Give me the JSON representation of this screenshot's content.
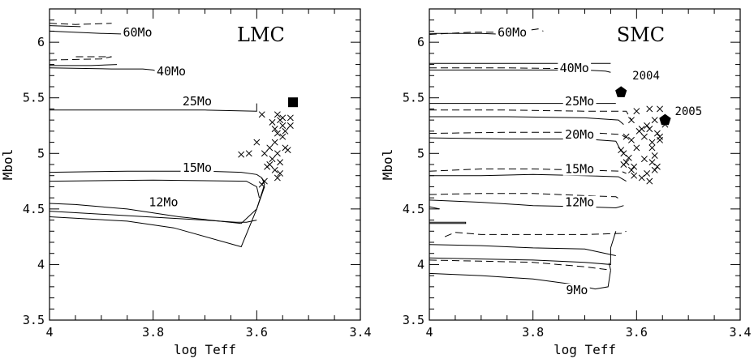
{
  "chart_data": [
    {
      "type": "scatter",
      "title": "LMC",
      "xlabel": "log Teff",
      "ylabel": "Mbol",
      "xlim": [
        4.0,
        3.4
      ],
      "ylim": [
        3.5,
        6.3
      ],
      "x_ticks": [
        "4",
        "3.8",
        "3.6",
        "3.4"
      ],
      "y_ticks": [
        "3.5",
        "4",
        "4.5",
        "5",
        "5.5",
        "6"
      ],
      "track_labels": [
        {
          "text": "60Mo",
          "x": 3.83,
          "y": 6.06
        },
        {
          "text": "40Mo",
          "x": 3.765,
          "y": 5.71
        },
        {
          "text": "25Mo",
          "x": 3.715,
          "y": 5.44
        },
        {
          "text": "15Mo",
          "x": 3.715,
          "y": 4.84
        },
        {
          "text": "12Mo",
          "x": 3.78,
          "y": 4.53
        }
      ],
      "tracks": [
        {
          "style": "solid",
          "points": [
            [
              4.0,
              6.1
            ],
            [
              3.9,
              6.08
            ],
            [
              3.83,
              6.07
            ],
            [
              3.8,
              6.06
            ]
          ]
        },
        {
          "style": "dashed",
          "points": [
            [
              4.0,
              6.17
            ],
            [
              3.95,
              6.16
            ],
            [
              3.88,
              6.17
            ]
          ]
        },
        {
          "style": "solid",
          "points": [
            [
              4.0,
              6.15
            ],
            [
              3.94,
              6.14
            ]
          ]
        },
        {
          "style": "solid",
          "points": [
            [
              4.0,
              5.77
            ],
            [
              3.88,
              5.76
            ],
            [
              3.82,
              5.76
            ],
            [
              3.8,
              5.75
            ],
            [
              3.785,
              5.73
            ],
            [
              3.78,
              5.7
            ],
            [
              3.785,
              5.78
            ]
          ]
        },
        {
          "style": "dashed",
          "points": [
            [
              4.0,
              5.84
            ],
            [
              3.9,
              5.85
            ],
            [
              3.88,
              5.87
            ],
            [
              3.95,
              5.87
            ]
          ]
        },
        {
          "style": "solid",
          "points": [
            [
              4.0,
              5.79
            ],
            [
              3.92,
              5.79
            ],
            [
              3.87,
              5.8
            ]
          ]
        },
        {
          "style": "solid",
          "points": [
            [
              4.0,
              5.39
            ],
            [
              3.8,
              5.39
            ],
            [
              3.7,
              5.39
            ],
            [
              3.6,
              5.38
            ],
            [
              3.6,
              5.45
            ]
          ]
        },
        {
          "style": "solid",
          "points": [
            [
              4.0,
              4.83
            ],
            [
              3.85,
              4.84
            ],
            [
              3.7,
              4.84
            ],
            [
              3.63,
              4.83
            ],
            [
              3.6,
              4.81
            ],
            [
              3.59,
              4.78
            ],
            [
              3.585,
              4.72
            ],
            [
              3.6,
              4.5
            ],
            [
              3.63,
              4.37
            ],
            [
              3.75,
              4.43
            ],
            [
              3.85,
              4.5
            ],
            [
              3.95,
              4.54
            ],
            [
              4.0,
              4.55
            ]
          ]
        },
        {
          "style": "solid",
          "points": [
            [
              4.0,
              4.75
            ],
            [
              3.8,
              4.76
            ],
            [
              3.62,
              4.75
            ],
            [
              3.6,
              4.7
            ],
            [
              3.595,
              4.6
            ]
          ]
        },
        {
          "style": "solid",
          "points": [
            [
              4.0,
              4.48
            ],
            [
              3.85,
              4.44
            ],
            [
              3.7,
              4.4
            ],
            [
              3.64,
              4.38
            ],
            [
              3.62,
              4.38
            ],
            [
              3.6,
              4.4
            ]
          ]
        },
        {
          "style": "solid",
          "points": [
            [
              4.0,
              4.43
            ],
            [
              3.85,
              4.39
            ],
            [
              3.76,
              4.33
            ],
            [
              3.63,
              4.16
            ],
            [
              3.6,
              4.5
            ],
            [
              3.585,
              4.7
            ]
          ]
        }
      ],
      "stars": [
        [
          3.56,
          5.35
        ],
        [
          3.555,
          5.3
        ],
        [
          3.55,
          5.25
        ],
        [
          3.565,
          5.22
        ],
        [
          3.545,
          5.2
        ],
        [
          3.535,
          5.25
        ],
        [
          3.57,
          5.28
        ],
        [
          3.56,
          5.18
        ],
        [
          3.55,
          5.15
        ],
        [
          3.565,
          5.1
        ],
        [
          3.545,
          5.05
        ],
        [
          3.56,
          5.0
        ],
        [
          3.54,
          5.03
        ],
        [
          3.57,
          4.95
        ],
        [
          3.555,
          4.92
        ],
        [
          3.575,
          4.9
        ],
        [
          3.565,
          4.85
        ],
        [
          3.555,
          4.82
        ],
        [
          3.58,
          4.88
        ],
        [
          3.585,
          5.0
        ],
        [
          3.6,
          5.1
        ],
        [
          3.615,
          5.0
        ],
        [
          3.63,
          4.99
        ],
        [
          3.59,
          5.35
        ],
        [
          3.585,
          4.75
        ],
        [
          3.59,
          4.72
        ],
        [
          3.55,
          5.32
        ],
        [
          3.535,
          5.32
        ],
        [
          3.56,
          4.78
        ],
        [
          3.575,
          5.05
        ]
      ],
      "highlight": [
        {
          "marker": "square",
          "x": 3.53,
          "y": 5.46,
          "label": ""
        }
      ]
    },
    {
      "type": "scatter",
      "title": "SMC",
      "xlabel": "log Teff",
      "ylabel": "Mbol",
      "xlim": [
        4.0,
        3.4
      ],
      "ylim": [
        3.5,
        6.3
      ],
      "x_ticks": [
        "4",
        "3.8",
        "3.6",
        "3.4"
      ],
      "y_ticks": [
        "3.5",
        "4",
        "4.5",
        "5",
        "5.5",
        "6"
      ],
      "track_labels": [
        {
          "text": "60Mo",
          "x": 3.84,
          "y": 6.06
        },
        {
          "text": "40Mo",
          "x": 3.72,
          "y": 5.74
        },
        {
          "text": "25Mo",
          "x": 3.71,
          "y": 5.44
        },
        {
          "text": "20Mo",
          "x": 3.71,
          "y": 5.14
        },
        {
          "text": "15Mo",
          "x": 3.71,
          "y": 4.83
        },
        {
          "text": "12Mo",
          "x": 3.71,
          "y": 4.53
        },
        {
          "text": "9Mo",
          "x": 3.715,
          "y": 3.74
        }
      ],
      "tracks": [
        {
          "style": "solid",
          "points": [
            [
              4.0,
              6.08
            ],
            [
              3.9,
              6.08
            ],
            [
              3.85,
              6.07
            ]
          ]
        },
        {
          "style": "dashed",
          "points": [
            [
              4.0,
              6.07
            ],
            [
              3.92,
              6.09
            ],
            [
              3.85,
              6.09
            ],
            [
              3.82,
              6.1
            ],
            [
              3.79,
              6.12
            ],
            [
              3.78,
              6.1
            ]
          ]
        },
        {
          "style": "solid",
          "points": [
            [
              4.0,
              5.81
            ],
            [
              3.85,
              5.81
            ],
            [
              3.7,
              5.81
            ],
            [
              3.65,
              5.81
            ]
          ]
        },
        {
          "style": "dashed",
          "points": [
            [
              4.0,
              5.77
            ],
            [
              3.85,
              5.77
            ],
            [
              3.7,
              5.76
            ]
          ]
        },
        {
          "style": "solid",
          "points": [
            [
              4.0,
              5.75
            ],
            [
              3.85,
              5.75
            ],
            [
              3.7,
              5.75
            ],
            [
              3.66,
              5.74
            ],
            [
              3.65,
              5.73
            ]
          ]
        },
        {
          "style": "solid",
          "points": [
            [
              4.0,
              5.45
            ],
            [
              3.85,
              5.45
            ],
            [
              3.7,
              5.45
            ],
            [
              3.64,
              5.45
            ]
          ]
        },
        {
          "style": "dashed",
          "points": [
            [
              4.0,
              5.39
            ],
            [
              3.85,
              5.39
            ],
            [
              3.7,
              5.38
            ],
            [
              3.62,
              5.38
            ],
            [
              3.61,
              5.3
            ]
          ]
        },
        {
          "style": "solid",
          "points": [
            [
              4.0,
              5.33
            ],
            [
              3.85,
              5.33
            ],
            [
              3.7,
              5.32
            ],
            [
              3.635,
              5.3
            ],
            [
              3.625,
              5.26
            ]
          ]
        },
        {
          "style": "dashed",
          "points": [
            [
              4.0,
              5.18
            ],
            [
              3.85,
              5.19
            ],
            [
              3.7,
              5.19
            ],
            [
              3.63,
              5.17
            ],
            [
              3.62,
              5.14
            ]
          ]
        },
        {
          "style": "solid",
          "points": [
            [
              4.0,
              5.14
            ],
            [
              3.85,
              5.13
            ],
            [
              3.7,
              5.13
            ],
            [
              3.64,
              5.11
            ],
            [
              3.63,
              5.02
            ]
          ]
        },
        {
          "style": "dashed",
          "points": [
            [
              4.0,
              4.84
            ],
            [
              3.9,
              4.86
            ],
            [
              3.8,
              4.86
            ],
            [
              3.7,
              4.85
            ],
            [
              3.63,
              4.84
            ],
            [
              3.62,
              4.82
            ]
          ]
        },
        {
          "style": "solid",
          "points": [
            [
              4.0,
              4.8
            ],
            [
              3.9,
              4.8
            ],
            [
              3.8,
              4.81
            ],
            [
              3.7,
              4.8
            ],
            [
              3.635,
              4.79
            ],
            [
              3.62,
              4.75
            ]
          ]
        },
        {
          "style": "dashed",
          "points": [
            [
              4.0,
              4.63
            ],
            [
              3.9,
              4.64
            ],
            [
              3.8,
              4.64
            ],
            [
              3.7,
              4.62
            ],
            [
              3.64,
              4.61
            ],
            [
              3.63,
              4.58
            ]
          ]
        },
        {
          "style": "solid",
          "points": [
            [
              4.0,
              4.58
            ],
            [
              3.9,
              4.56
            ],
            [
              3.8,
              4.53
            ],
            [
              3.7,
              4.52
            ],
            [
              3.64,
              4.51
            ],
            [
              3.625,
              4.53
            ]
          ]
        },
        {
          "style": "solid",
          "points": [
            [
              4.0,
              4.52
            ],
            [
              3.98,
              4.5
            ]
          ]
        },
        {
          "style": "solid",
          "points": [
            [
              4.0,
              4.38
            ],
            [
              3.93,
              4.38
            ],
            [
              3.93,
              4.37
            ],
            [
              4.0,
              4.37
            ]
          ]
        },
        {
          "style": "dashed",
          "points": [
            [
              3.97,
              4.25
            ],
            [
              3.95,
              4.29
            ],
            [
              3.9,
              4.27
            ],
            [
              3.8,
              4.27
            ],
            [
              3.7,
              4.27
            ],
            [
              3.63,
              4.28
            ],
            [
              3.62,
              4.3
            ]
          ]
        },
        {
          "style": "solid",
          "points": [
            [
              4.0,
              4.18
            ],
            [
              3.9,
              4.17
            ],
            [
              3.8,
              4.15
            ],
            [
              3.7,
              4.14
            ],
            [
              3.66,
              4.1
            ],
            [
              3.64,
              4.08
            ]
          ]
        },
        {
          "style": "solid",
          "points": [
            [
              4.0,
              4.06
            ],
            [
              3.9,
              4.05
            ],
            [
              3.8,
              4.04
            ],
            [
              3.7,
              4.02
            ],
            [
              3.65,
              4.0
            ],
            [
              3.65,
              4.15
            ],
            [
              3.64,
              4.3
            ]
          ]
        },
        {
          "style": "dashed",
          "points": [
            [
              4.0,
              4.04
            ],
            [
              3.9,
              4.03
            ],
            [
              3.8,
              4.02
            ],
            [
              3.7,
              3.98
            ],
            [
              3.65,
              3.95
            ],
            [
              3.655,
              4.05
            ]
          ]
        },
        {
          "style": "solid",
          "points": [
            [
              4.0,
              3.92
            ],
            [
              3.9,
              3.9
            ],
            [
              3.8,
              3.87
            ],
            [
              3.72,
              3.82
            ],
            [
              3.68,
              3.78
            ],
            [
              3.655,
              3.8
            ],
            [
              3.65,
              3.95
            ]
          ]
        }
      ],
      "stars": [
        [
          3.6,
          5.38
        ],
        [
          3.575,
          5.4
        ],
        [
          3.555,
          5.4
        ],
        [
          3.565,
          5.3
        ],
        [
          3.58,
          5.25
        ],
        [
          3.575,
          5.22
        ],
        [
          3.59,
          5.22
        ],
        [
          3.56,
          5.18
        ],
        [
          3.585,
          5.15
        ],
        [
          3.555,
          5.12
        ],
        [
          3.57,
          5.1
        ],
        [
          3.6,
          5.05
        ],
        [
          3.61,
          5.12
        ],
        [
          3.62,
          5.15
        ],
        [
          3.625,
          5.0
        ],
        [
          3.63,
          5.03
        ],
        [
          3.615,
          4.96
        ],
        [
          3.62,
          4.92
        ],
        [
          3.605,
          4.88
        ],
        [
          3.61,
          4.85
        ],
        [
          3.605,
          4.8
        ],
        [
          3.59,
          4.78
        ],
        [
          3.585,
          4.95
        ],
        [
          3.57,
          4.92
        ],
        [
          3.565,
          4.85
        ],
        [
          3.58,
          4.82
        ],
        [
          3.575,
          4.75
        ],
        [
          3.565,
          4.98
        ],
        [
          3.555,
          5.15
        ],
        [
          3.545,
          5.26
        ],
        [
          3.56,
          4.88
        ],
        [
          3.625,
          4.9
        ],
        [
          3.595,
          5.2
        ],
        [
          3.57,
          5.05
        ],
        [
          3.61,
          5.3
        ]
      ],
      "highlight": [
        {
          "marker": "pentagon",
          "x": 3.63,
          "y": 5.55,
          "label": "2004"
        },
        {
          "marker": "pentagon",
          "x": 3.545,
          "y": 5.3,
          "label": "2005"
        }
      ]
    }
  ]
}
